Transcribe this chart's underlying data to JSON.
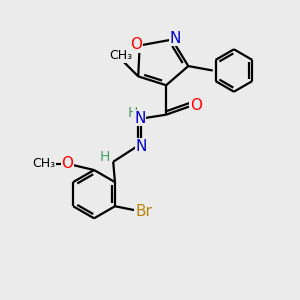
{
  "bg_color": "#ebebeb",
  "atom_colors": {
    "O": "#ff0000",
    "N": "#0000cd",
    "Br": "#b8860b",
    "C": "#000000",
    "H": "#4a9a6a"
  },
  "bond_color": "#000000",
  "bond_lw": 1.6
}
